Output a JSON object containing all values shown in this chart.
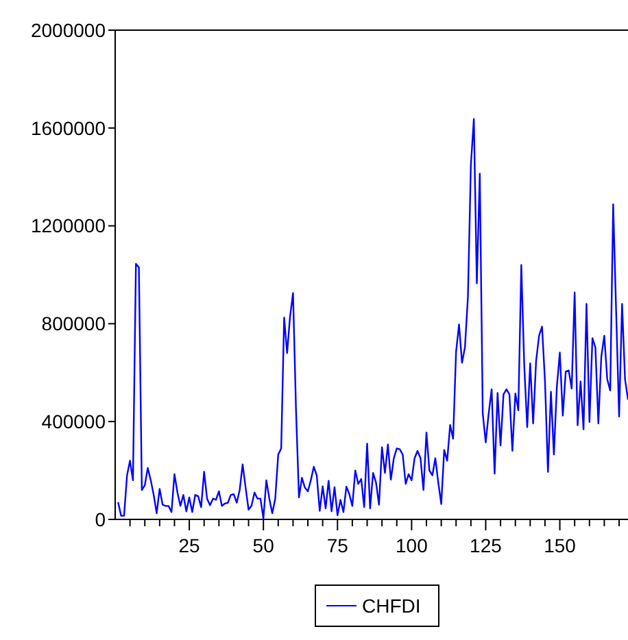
{
  "chart_data": {
    "type": "line",
    "xlim": [
      0,
      173
    ],
    "ylim": [
      0,
      2000000
    ],
    "yticks": [
      0,
      400000,
      800000,
      1200000,
      1600000,
      2000000
    ],
    "xticks": [
      {
        "value": 5,
        "label": null
      },
      {
        "value": 10,
        "label": null
      },
      {
        "value": 15,
        "label": null
      },
      {
        "value": 20,
        "label": null
      },
      25,
      {
        "value": 30,
        "label": null
      },
      {
        "value": 35,
        "label": null
      },
      {
        "value": 40,
        "label": null
      },
      {
        "value": 45,
        "label": null
      },
      50,
      {
        "value": 55,
        "label": null
      },
      {
        "value": 60,
        "label": null
      },
      {
        "value": 65,
        "label": null
      },
      {
        "value": 70,
        "label": null
      },
      75,
      {
        "value": 80,
        "label": null
      },
      {
        "value": 85,
        "label": null
      },
      {
        "value": 90,
        "label": null
      },
      {
        "value": 95,
        "label": null
      },
      100,
      {
        "value": 105,
        "label": null
      },
      {
        "value": 110,
        "label": null
      },
      {
        "value": 115,
        "label": null
      },
      {
        "value": 120,
        "label": null
      },
      125,
      {
        "value": 130,
        "label": null
      },
      {
        "value": 135,
        "label": null
      },
      {
        "value": 140,
        "label": null
      },
      {
        "value": 145,
        "label": null
      },
      150,
      {
        "value": 155,
        "label": null
      },
      {
        "value": 160,
        "label": null
      },
      {
        "value": 165,
        "label": null
      },
      {
        "value": 170,
        "label": null
      }
    ],
    "legend": "bottom",
    "grid": false,
    "x": [
      1,
      2,
      3,
      4,
      5,
      6,
      7,
      8,
      9,
      10,
      11,
      12,
      13,
      14,
      15,
      16,
      17,
      18,
      19,
      20,
      21,
      22,
      23,
      24,
      25,
      26,
      27,
      28,
      29,
      30,
      31,
      32,
      33,
      34,
      35,
      36,
      37,
      38,
      39,
      40,
      41,
      42,
      43,
      44,
      45,
      46,
      47,
      48,
      49,
      50,
      51,
      52,
      53,
      54,
      55,
      56,
      57,
      58,
      59,
      60,
      61,
      62,
      63,
      64,
      65,
      66,
      67,
      68,
      69,
      70,
      71,
      72,
      73,
      74,
      75,
      76,
      77,
      78,
      79,
      80,
      81,
      82,
      83,
      84,
      85,
      86,
      87,
      88,
      89,
      90,
      91,
      92,
      93,
      94,
      95,
      96,
      97,
      98,
      99,
      100,
      101,
      102,
      103,
      104,
      105,
      106,
      107,
      108,
      109,
      110,
      111,
      112,
      113,
      114,
      115,
      116,
      117,
      118,
      119,
      120,
      121,
      122,
      123,
      124,
      125,
      126,
      127,
      128,
      129,
      130,
      131,
      132,
      133,
      134,
      135,
      136,
      137,
      138,
      139,
      140,
      141,
      142,
      143,
      144,
      145,
      146,
      147,
      148,
      149,
      150,
      151,
      152,
      153,
      154,
      155,
      156,
      157,
      158,
      159,
      160,
      161,
      162,
      163,
      164,
      165,
      166,
      167,
      168,
      169,
      170,
      171,
      172,
      173
    ],
    "series": [
      {
        "name": "CHFDI",
        "color": "#0000ff",
        "values": [
          70000,
          15000,
          15000,
          180000,
          240000,
          160000,
          1045000,
          1030000,
          120000,
          140000,
          210000,
          160000,
          100000,
          25000,
          125000,
          60000,
          55000,
          55000,
          30000,
          185000,
          110000,
          55000,
          100000,
          33000,
          90000,
          30000,
          100000,
          95000,
          50000,
          195000,
          85000,
          58000,
          85000,
          80000,
          115000,
          55000,
          65000,
          68000,
          100000,
          103000,
          68000,
          120000,
          225000,
          130000,
          40000,
          55000,
          110000,
          85000,
          85000,
          5000,
          160000,
          85000,
          25000,
          85000,
          265000,
          290000,
          825000,
          680000,
          830000,
          925000,
          450000,
          90000,
          170000,
          130000,
          115000,
          160000,
          215000,
          180000,
          35000,
          135000,
          45000,
          158000,
          33000,
          132000,
          17000,
          80000,
          30000,
          134000,
          103000,
          55000,
          200000,
          145000,
          165000,
          50000,
          310000,
          45000,
          190000,
          150000,
          60000,
          295000,
          190000,
          306000,
          162000,
          250000,
          290000,
          287000,
          265000,
          145000,
          185000,
          160000,
          250000,
          280000,
          250000,
          120000,
          355000,
          200000,
          180000,
          250000,
          150000,
          63000,
          284000,
          240000,
          386000,
          330000,
          685000,
          797000,
          640000,
          704000,
          910000,
          1451000,
          1637000,
          965000,
          1413000,
          433000,
          315000,
          433000,
          532000,
          187000,
          517000,
          302000,
          511000,
          532000,
          511000,
          280000,
          515000,
          446000,
          1040000,
          629000,
          377000,
          638000,
          392000,
          648000,
          751000,
          788000,
          564000,
          194000,
          522000,
          265000,
          543000,
          682000,
          424000,
          605000,
          609000,
          535000,
          928000,
          385000,
          564000,
          368000,
          881000,
          398000,
          741000,
          703000,
          392000,
          666000,
          751000,
          573000,
          527000,
          1288000,
          850000,
          420000,
          881000,
          573000,
          489000
        ]
      }
    ]
  }
}
